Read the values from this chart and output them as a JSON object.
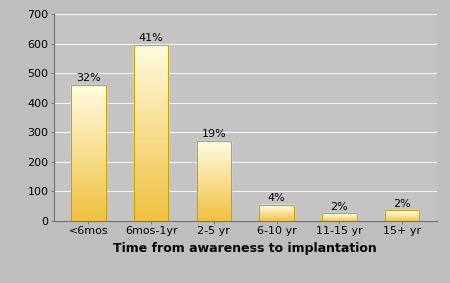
{
  "categories": [
    "<6mos",
    "6mos-1yr",
    "2-5 yr",
    "6-10 yr",
    "11-15 yr",
    "15+ yr"
  ],
  "values": [
    460,
    595,
    270,
    55,
    25,
    35
  ],
  "percentages": [
    "32%",
    "41%",
    "19%",
    "4%",
    "2%",
    "2%"
  ],
  "bar_color_bottom": "#F0C040",
  "bar_color_top": "#FEFBE0",
  "bar_edge_color": "#C8A000",
  "background_color": "#BEBEBE",
  "plot_bg_color": "#C4C4C4",
  "grid_color": "#B0B0B0",
  "xlabel": "Time from awareness to implantation",
  "ylim": [
    0,
    700
  ],
  "yticks": [
    0,
    100,
    200,
    300,
    400,
    500,
    600,
    700
  ],
  "xlabel_fontsize": 9,
  "tick_fontsize": 8,
  "pct_fontsize": 8,
  "bar_width": 0.55
}
